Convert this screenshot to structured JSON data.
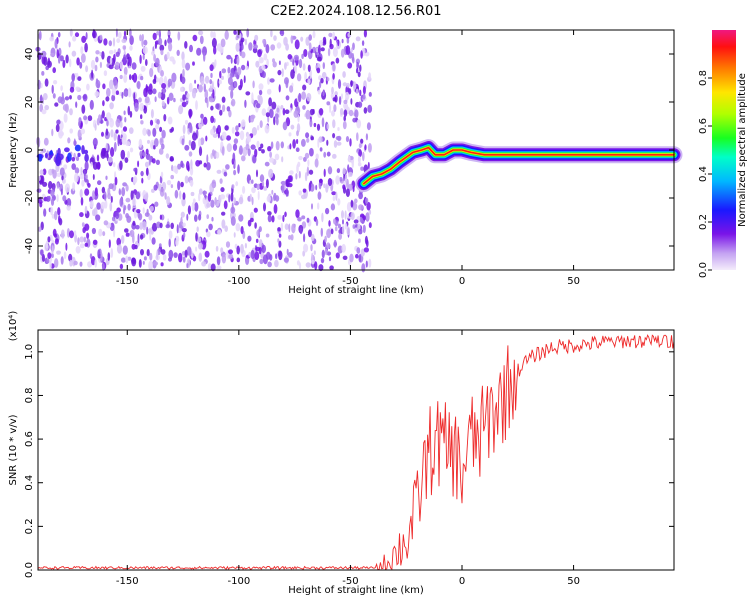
{
  "title": "C2E2.2024.108.12.56.R01",
  "chart_data": [
    {
      "type": "heatmap",
      "xlabel": "Height of straight line (km)",
      "ylabel": "Frequency (Hz)",
      "xlim": [
        -190,
        95
      ],
      "ylim": [
        -50,
        50
      ],
      "x_ticks": [
        -150,
        -100,
        -50,
        0,
        50
      ],
      "y_ticks": [
        -40,
        -20,
        0,
        20,
        40
      ],
      "ridge": [
        {
          "x": -44,
          "y": -14
        },
        {
          "x": -40,
          "y": -11
        },
        {
          "x": -36,
          "y": -10
        },
        {
          "x": -32,
          "y": -8
        },
        {
          "x": -28,
          "y": -5
        },
        {
          "x": -25,
          "y": -3
        },
        {
          "x": -22,
          "y": -1
        },
        {
          "x": -18,
          "y": 0
        },
        {
          "x": -15,
          "y": 1
        },
        {
          "x": -12,
          "y": -2
        },
        {
          "x": -8,
          "y": -2
        },
        {
          "x": -4,
          "y": 0
        },
        {
          "x": 0,
          "y": 0
        },
        {
          "x": 4,
          "y": -1
        },
        {
          "x": 10,
          "y": -2
        },
        {
          "x": 20,
          "y": -2
        },
        {
          "x": 40,
          "y": -2
        },
        {
          "x": 60,
          "y": -2
        },
        {
          "x": 80,
          "y": -2
        },
        {
          "x": 95,
          "y": -2
        }
      ],
      "noise_region_x": [
        -190,
        -41
      ]
    },
    {
      "type": "line",
      "xlabel": "Height of straight line (km)",
      "ylabel": "SNR (10 * v/v)",
      "ylabel_multiplier": "(x10⁴)",
      "xlim": [
        -190,
        95
      ],
      "ylim": [
        0,
        1.1
      ],
      "x_ticks": [
        -150,
        -100,
        -50,
        0,
        50
      ],
      "y_ticks": [
        0.0,
        0.2,
        0.4,
        0.6,
        0.8,
        1.0
      ],
      "series": [
        {
          "color": "#ee2a2a",
          "x": [
            -190,
            -170,
            -150,
            -130,
            -110,
            -90,
            -70,
            -50,
            -40,
            -36,
            -32,
            -28,
            -24,
            -20,
            -16,
            -12,
            -8,
            -4,
            0,
            4,
            8,
            12,
            16,
            20,
            24,
            28,
            32,
            36,
            40,
            50,
            60,
            70,
            80,
            90,
            95
          ],
          "y": [
            0.01,
            0.01,
            0.01,
            0.01,
            0.01,
            0.01,
            0.01,
            0.01,
            0.01,
            0.02,
            0.05,
            0.1,
            0.15,
            0.3,
            0.5,
            0.6,
            0.55,
            0.55,
            0.45,
            0.6,
            0.6,
            0.7,
            0.75,
            0.82,
            0.9,
            0.95,
            0.98,
            1.0,
            1.02,
            1.03,
            1.04,
            1.05,
            1.05,
            1.05,
            1.05
          ]
        }
      ]
    }
  ],
  "colorbar": {
    "label": "Normalized spectral amplitude",
    "ticks": [
      0.0,
      0.2,
      0.4,
      0.6,
      0.8
    ],
    "range": [
      0,
      1
    ]
  }
}
